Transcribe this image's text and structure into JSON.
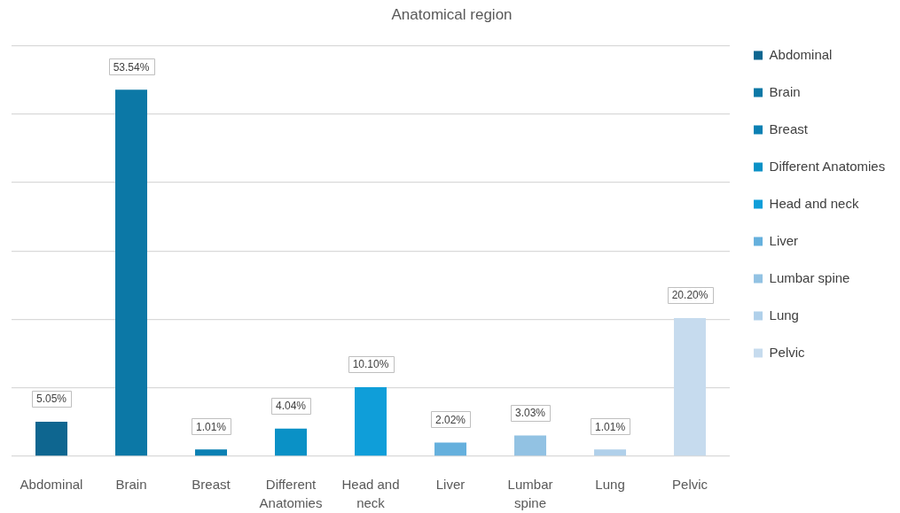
{
  "chart_data": {
    "type": "bar",
    "title": "Anatomical region",
    "categories": [
      "Abdominal",
      "Brain",
      "Breast",
      "Different Anatomies",
      "Head and neck",
      "Liver",
      "Lumbar spine",
      "Lung",
      "Pelvic"
    ],
    "series": [
      {
        "name": "Abdominal",
        "color": "#0e6690",
        "values": [
          5.05,
          null,
          null,
          null,
          null,
          null,
          null,
          null,
          null
        ],
        "value_labels": [
          "5.05%",
          null,
          null,
          null,
          null,
          null,
          null,
          null,
          null
        ]
      },
      {
        "name": "Brain",
        "color": "#0c78a6",
        "values": [
          null,
          53.54,
          null,
          null,
          null,
          null,
          null,
          null,
          null
        ],
        "value_labels": [
          null,
          "53.54%",
          null,
          null,
          null,
          null,
          null,
          null,
          null
        ]
      },
      {
        "name": "Breast",
        "color": "#0b80b3",
        "values": [
          null,
          null,
          1.01,
          null,
          null,
          null,
          null,
          null,
          null
        ],
        "value_labels": [
          null,
          null,
          "1.01%",
          null,
          null,
          null,
          null,
          null,
          null
        ]
      },
      {
        "name": "Different Anatomies",
        "color": "#0a91c6",
        "values": [
          null,
          null,
          null,
          4.04,
          null,
          null,
          null,
          null,
          null
        ],
        "value_labels": [
          null,
          null,
          null,
          "4.04%",
          null,
          null,
          null,
          null,
          null
        ]
      },
      {
        "name": "Head and neck",
        "color": "#0f9ed9",
        "values": [
          null,
          null,
          null,
          null,
          10.1,
          null,
          null,
          null,
          null
        ],
        "value_labels": [
          null,
          null,
          null,
          null,
          "10.10%",
          null,
          null,
          null,
          null
        ]
      },
      {
        "name": "Liver",
        "color": "#65b0dd",
        "values": [
          null,
          null,
          null,
          null,
          null,
          2.02,
          null,
          null,
          null
        ],
        "value_labels": [
          null,
          null,
          null,
          null,
          null,
          "2.02%",
          null,
          null,
          null
        ]
      },
      {
        "name": "Lumbar spine",
        "color": "#92c2e3",
        "values": [
          null,
          null,
          null,
          null,
          null,
          null,
          3.03,
          null,
          null
        ],
        "value_labels": [
          null,
          null,
          null,
          null,
          null,
          null,
          "3.03%",
          null,
          null
        ]
      },
      {
        "name": "Lung",
        "color": "#b0d0ea",
        "values": [
          null,
          null,
          null,
          null,
          null,
          null,
          null,
          1.01,
          null
        ],
        "value_labels": [
          null,
          null,
          null,
          null,
          null,
          null,
          null,
          "1.01%",
          null
        ]
      },
      {
        "name": "Pelvic",
        "color": "#c6dbee",
        "values": [
          null,
          null,
          null,
          null,
          null,
          null,
          null,
          null,
          20.2
        ],
        "value_labels": [
          null,
          null,
          null,
          null,
          null,
          null,
          null,
          null,
          "20.20%"
        ]
      }
    ],
    "ylim": [
      0,
      60
    ],
    "yticks": [
      {
        "value": 0,
        "label": null
      },
      {
        "value": 10,
        "label": null
      },
      {
        "value": 20,
        "label": null
      },
      {
        "value": 30,
        "label": null
      },
      {
        "value": 40,
        "label": null
      },
      {
        "value": 50,
        "label": null
      },
      {
        "value": 60,
        "label": null
      }
    ],
    "grid": "y",
    "legend": "right",
    "tick_labels": "x"
  }
}
